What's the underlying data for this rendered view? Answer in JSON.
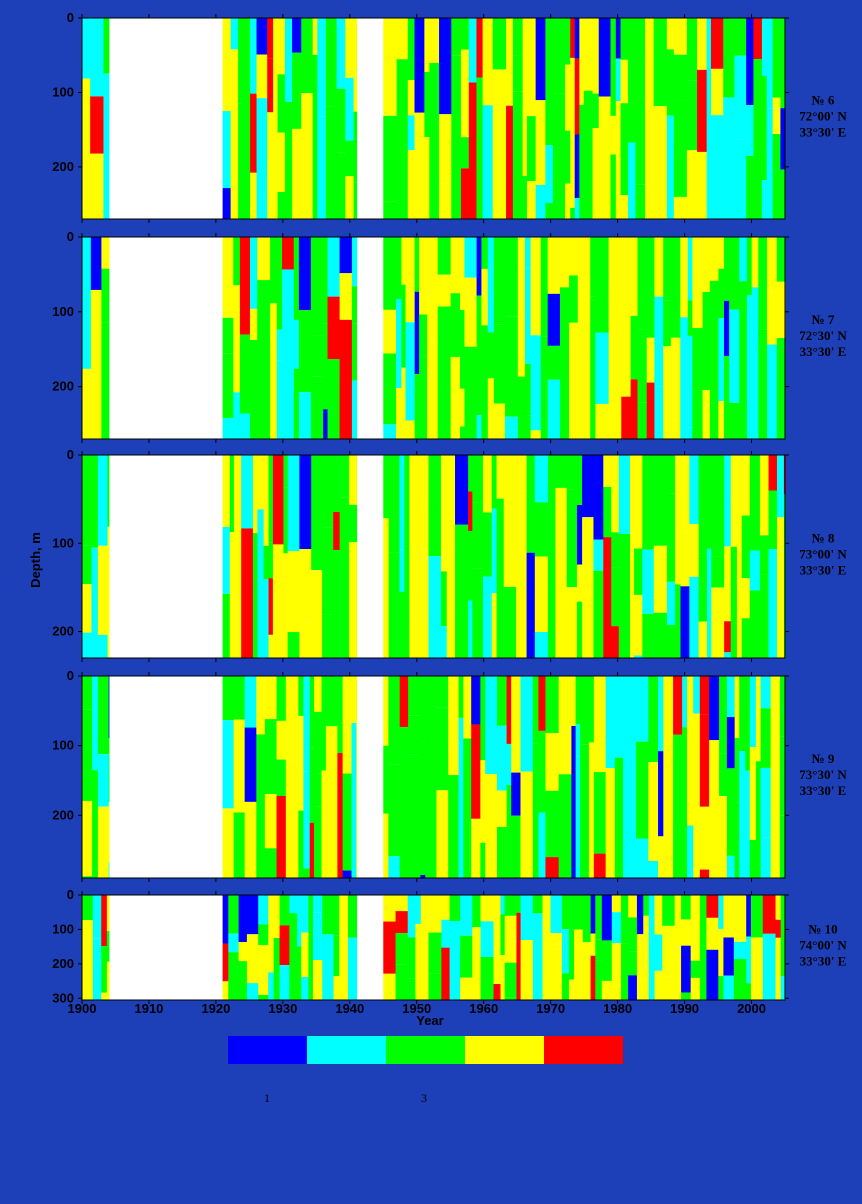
{
  "chart_data": {
    "type": "heatmap",
    "xlabel": "Year",
    "ylabel": "Depth, m",
    "xlim": [
      1900,
      2005
    ],
    "x_ticks": [
      "1900",
      "1910",
      "1920",
      "1930",
      "1940",
      "1950",
      "1960",
      "1970",
      "1980",
      "1990",
      "2000"
    ],
    "data_gaps": [
      [
        1904,
        1921
      ],
      [
        1941,
        1945
      ]
    ],
    "class_colors": [
      "#0000ff",
      "#00ffff",
      "#00ff00",
      "#ffff00",
      "#ff0000"
    ],
    "legend_labels": [
      "1",
      "3"
    ],
    "panels": [
      {
        "station": "№ 6",
        "lat": "72°00' N",
        "lon": "33°30' E",
        "ylim": [
          0,
          270
        ],
        "y_ticks": [
          "0",
          "100",
          "200"
        ]
      },
      {
        "station": "№ 7",
        "lat": "72°30' N",
        "lon": "33°30' E",
        "ylim": [
          0,
          270
        ],
        "y_ticks": [
          "0",
          "100",
          "200"
        ]
      },
      {
        "station": "№ 8",
        "lat": "73°00' N",
        "lon": "33°30' E",
        "ylim": [
          0,
          230
        ],
        "y_ticks": [
          "0",
          "100",
          "200"
        ]
      },
      {
        "station": "№ 9",
        "lat": "73°30' N",
        "lon": "33°30' E",
        "ylim": [
          0,
          290
        ],
        "y_ticks": [
          "0",
          "100",
          "200"
        ]
      },
      {
        "station": "№ 10",
        "lat": "74°00' N",
        "lon": "33°30' E",
        "ylim": [
          0,
          305
        ],
        "y_ticks": [
          "0",
          "100",
          "200",
          "300"
        ]
      }
    ]
  }
}
